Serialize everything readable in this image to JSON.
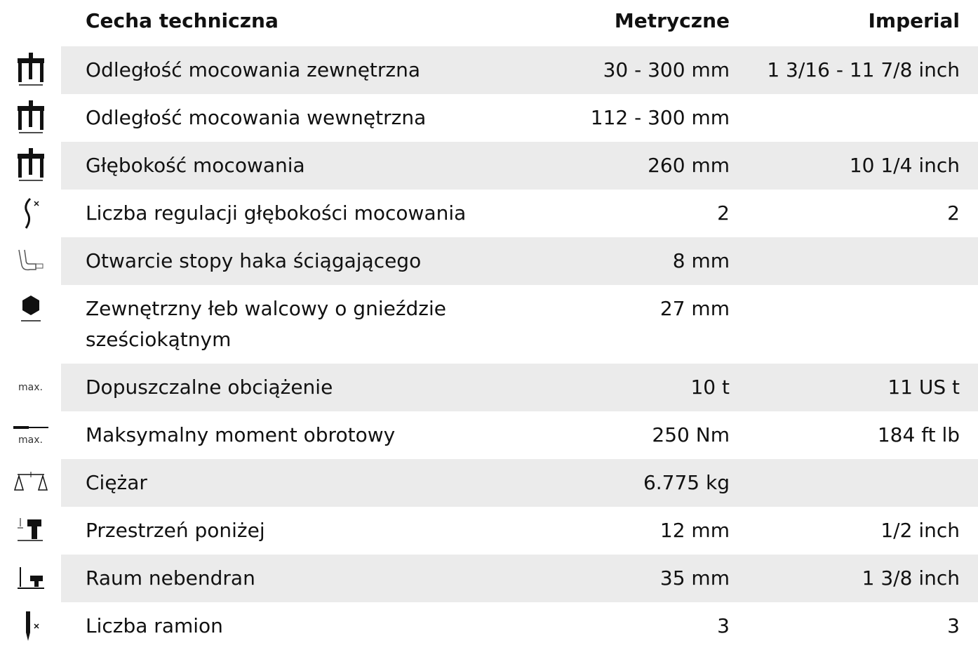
{
  "table": {
    "header": [
      "Cecha techniczna",
      "Metryczne",
      "Imperial"
    ],
    "rows": [
      {
        "label": "Odległość mocowania zewnętrzna",
        "metric": "30 - 300 mm",
        "imperial": "1 3/16 - 11 7/8 inch"
      },
      {
        "label": "Odległość mocowania wewnętrzna",
        "metric": "112 - 300 mm"
      },
      {
        "label": "Głębokość mocowania",
        "metric": "260 mm",
        "imperial": "10 1/4 inch"
      },
      {
        "label": "Liczba regulacji głębokości mocowania",
        "metric": "2",
        "imperial": "2"
      },
      {
        "label": "Otwarcie stopy haka ściągającego",
        "metric": "8 mm"
      },
      {
        "label": "Zewnętrzny łeb walcowy o gnieździe sześciokątnym",
        "metric": "27 mm"
      },
      {
        "label": "Dopuszczalne obciążenie",
        "metric": "10 t",
        "imperial": "11 US t",
        "icon_text": "max."
      },
      {
        "label": "Maksymalny moment obrotowy",
        "metric": "250 Nm",
        "imperial": "184 ft lb",
        "icon_text": "max."
      },
      {
        "label": "Ciężar",
        "metric": "6.775 kg"
      },
      {
        "label": "Przestrzeń poniżej",
        "metric": "12 mm",
        "imperial": "1/2 inch"
      },
      {
        "label": "Raum nebendran",
        "metric": "35 mm",
        "imperial": "1 3/8 inch"
      },
      {
        "label": "Liczba ramion",
        "metric": "3",
        "imperial": "3"
      }
    ]
  }
}
